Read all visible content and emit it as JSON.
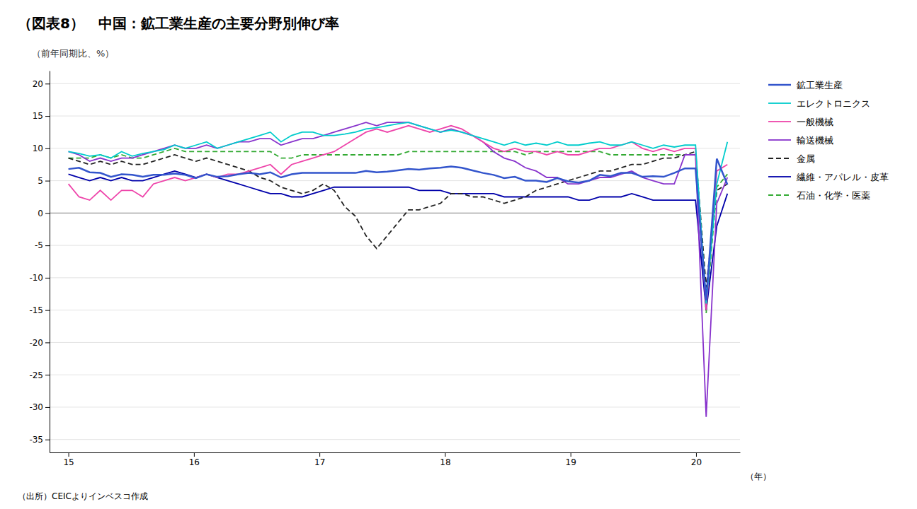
{
  "chart_data": {
    "type": "line",
    "title": "（図表8）　中国：鉱工業生産の主要分野別伸び率",
    "subtitle": "（前年同期比、%）",
    "x_label": "（年）",
    "footnote": "（出所）CEICよりインベスコ作成",
    "x": [
      15,
      15.084677,
      15.169355,
      15.254032,
      15.33871,
      15.423387,
      15.508065,
      15.592742,
      15.677419,
      15.762097,
      15.846774,
      15.931452,
      16.016129,
      16.100806,
      16.185484,
      16.270161,
      16.354839,
      16.439516,
      16.524194,
      16.608871,
      16.693548,
      16.778226,
      16.862903,
      16.947581,
      17.032258,
      17.116935,
      17.201613,
      17.28629,
      17.370968,
      17.455645,
      17.540323,
      17.625,
      17.709677,
      17.794355,
      17.879032,
      17.96371,
      18.048387,
      18.133065,
      18.217742,
      18.302419,
      18.387097,
      18.471774,
      18.556452,
      18.641129,
      18.725806,
      18.810484,
      18.895161,
      18.979839,
      19.064516,
      19.149194,
      19.233871,
      19.318548,
      19.403226,
      19.487903,
      19.572581,
      19.657258,
      19.741935,
      19.826613,
      19.91129,
      19.995968,
      20.080645,
      20.165323,
      20.25
    ],
    "xlim": [
      14.85,
      20.35
    ],
    "xticks": [
      15,
      16,
      17,
      18,
      19,
      20
    ],
    "ylim": [
      -37,
      22
    ],
    "yticks": [
      -35,
      -30,
      -25,
      -20,
      -15,
      -10,
      -5,
      0,
      5,
      10,
      15,
      20
    ],
    "grid": true,
    "legend": "right",
    "series": [
      {
        "name": "鉱工業生産",
        "color": "#3355cc",
        "line_style": "solid",
        "values": [
          6.8,
          7.0,
          6.3,
          6.2,
          5.6,
          6.0,
          5.9,
          5.6,
          5.9,
          5.9,
          6.1,
          5.9,
          5.4,
          6.0,
          5.6,
          5.7,
          6.0,
          6.2,
          6.0,
          6.3,
          5.5,
          6.0,
          6.2,
          6.2,
          6.2,
          6.2,
          6.2,
          6.2,
          6.5,
          6.3,
          6.4,
          6.6,
          6.8,
          6.7,
          6.9,
          7.0,
          7.2,
          7.0,
          6.6,
          6.2,
          5.9,
          5.4,
          5.6,
          5.0,
          5.0,
          4.8,
          5.4,
          4.9,
          4.7,
          5.0,
          5.9,
          5.7,
          6.2,
          6.2,
          5.6,
          5.7,
          5.6,
          6.2,
          6.9,
          6.9,
          -13.5,
          8.4,
          4.4
        ]
      },
      {
        "name": "エレクトロニクス",
        "color": "#00cccc",
        "line_style": "solid",
        "values": [
          9.5,
          9.2,
          8.8,
          9.0,
          8.5,
          9.5,
          8.8,
          9.2,
          9.5,
          9.8,
          10.5,
          10.0,
          10.5,
          11.0,
          10.0,
          10.5,
          11.0,
          11.5,
          12.0,
          12.5,
          11.0,
          12.0,
          12.5,
          12.5,
          12.0,
          12.0,
          12.2,
          12.5,
          13.0,
          13.2,
          13.5,
          13.8,
          14.0,
          13.5,
          13.0,
          12.5,
          12.8,
          12.5,
          12.0,
          11.5,
          11.0,
          10.5,
          11.0,
          10.5,
          10.8,
          10.5,
          11.0,
          10.5,
          10.5,
          10.8,
          11.0,
          10.5,
          10.5,
          11.0,
          10.5,
          10.0,
          10.5,
          10.2,
          10.5,
          10.5,
          -14.0,
          4.5,
          11.0
        ]
      },
      {
        "name": "一般機械",
        "color": "#ee44aa",
        "line_style": "solid",
        "values": [
          4.5,
          2.5,
          2.0,
          3.5,
          2.0,
          3.5,
          3.5,
          2.5,
          4.5,
          5.0,
          5.5,
          5.0,
          5.5,
          6.0,
          5.5,
          6.0,
          6.0,
          6.5,
          7.0,
          7.5,
          6.0,
          7.5,
          8.0,
          8.5,
          9.0,
          9.5,
          10.5,
          11.5,
          12.5,
          13.0,
          12.5,
          13.0,
          13.5,
          13.0,
          12.5,
          13.0,
          13.5,
          13.0,
          12.0,
          11.0,
          10.0,
          9.5,
          10.0,
          9.5,
          9.5,
          9.0,
          9.5,
          9.0,
          9.0,
          9.5,
          10.0,
          10.0,
          10.5,
          11.0,
          10.0,
          9.5,
          10.0,
          9.5,
          10.0,
          10.0,
          -15.0,
          6.5,
          7.5
        ]
      },
      {
        "name": "輸送機械",
        "color": "#8833cc",
        "line_style": "solid",
        "values": [
          9.5,
          9.0,
          8.0,
          8.5,
          8.0,
          8.5,
          8.5,
          9.0,
          9.5,
          10.0,
          10.5,
          10.0,
          10.0,
          10.5,
          10.0,
          10.5,
          11.0,
          11.0,
          11.5,
          11.5,
          10.5,
          11.0,
          11.5,
          11.5,
          12.0,
          12.5,
          13.0,
          13.5,
          14.0,
          13.5,
          14.0,
          14.0,
          14.0,
          13.5,
          13.0,
          12.5,
          13.0,
          12.5,
          12.0,
          11.0,
          9.5,
          8.5,
          8.0,
          7.0,
          6.5,
          5.5,
          5.5,
          4.5,
          4.5,
          5.0,
          5.5,
          5.5,
          6.0,
          6.5,
          5.5,
          5.0,
          4.5,
          4.5,
          9.0,
          9.0,
          -31.5,
          1.5,
          5.5
        ]
      },
      {
        "name": "金属",
        "color": "#222222",
        "line_style": "dashed",
        "values": [
          8.5,
          8.0,
          7.5,
          8.0,
          7.5,
          8.0,
          7.5,
          7.5,
          8.0,
          8.5,
          9.0,
          8.5,
          8.0,
          8.5,
          8.0,
          7.5,
          7.0,
          6.5,
          5.5,
          5.0,
          4.0,
          3.5,
          3.0,
          3.5,
          4.5,
          3.5,
          1.0,
          -0.5,
          -3.5,
          -5.5,
          -3.5,
          -1.5,
          0.5,
          0.5,
          1.0,
          1.5,
          3.0,
          3.0,
          2.5,
          2.5,
          2.0,
          1.5,
          2.0,
          2.5,
          3.5,
          4.0,
          4.5,
          5.0,
          5.5,
          6.0,
          6.5,
          6.5,
          7.0,
          7.5,
          7.5,
          8.0,
          8.5,
          8.5,
          9.0,
          9.5,
          -11.5,
          3.5,
          4.5
        ]
      },
      {
        "name": "繊維・アパレル・皮革",
        "color": "#0000aa",
        "line_style": "solid",
        "values": [
          6.0,
          5.5,
          5.0,
          5.5,
          5.0,
          5.5,
          5.0,
          5.0,
          5.5,
          6.0,
          6.5,
          6.0,
          5.5,
          6.0,
          5.5,
          5.0,
          4.5,
          4.0,
          3.5,
          3.0,
          3.0,
          2.5,
          2.5,
          3.0,
          3.5,
          4.0,
          4.0,
          4.0,
          4.0,
          4.0,
          4.0,
          4.0,
          4.0,
          3.5,
          3.5,
          3.5,
          3.0,
          3.0,
          3.0,
          3.0,
          3.0,
          2.5,
          2.5,
          2.5,
          2.5,
          2.5,
          2.5,
          2.5,
          2.0,
          2.0,
          2.5,
          2.5,
          2.5,
          3.0,
          2.5,
          2.0,
          2.0,
          2.0,
          2.0,
          2.0,
          -15.0,
          -2.0,
          3.0
        ]
      },
      {
        "name": "石油・化学・医薬",
        "color": "#33aa33",
        "line_style": "dashed",
        "values": [
          8.5,
          8.5,
          8.5,
          9.0,
          8.5,
          9.0,
          8.5,
          8.5,
          9.0,
          9.5,
          10.0,
          9.5,
          9.5,
          9.5,
          9.5,
          9.5,
          9.5,
          9.5,
          9.5,
          9.5,
          8.5,
          8.5,
          9.0,
          9.0,
          9.0,
          9.0,
          9.0,
          9.0,
          9.0,
          9.0,
          9.0,
          9.0,
          9.5,
          9.5,
          9.5,
          9.5,
          9.5,
          9.5,
          9.5,
          9.5,
          9.5,
          9.5,
          9.5,
          9.0,
          9.5,
          9.5,
          9.5,
          9.5,
          9.5,
          9.5,
          9.5,
          9.0,
          9.0,
          9.0,
          9.0,
          9.0,
          9.0,
          9.0,
          9.0,
          9.0,
          -15.5,
          4.0,
          6.0
        ]
      }
    ]
  }
}
